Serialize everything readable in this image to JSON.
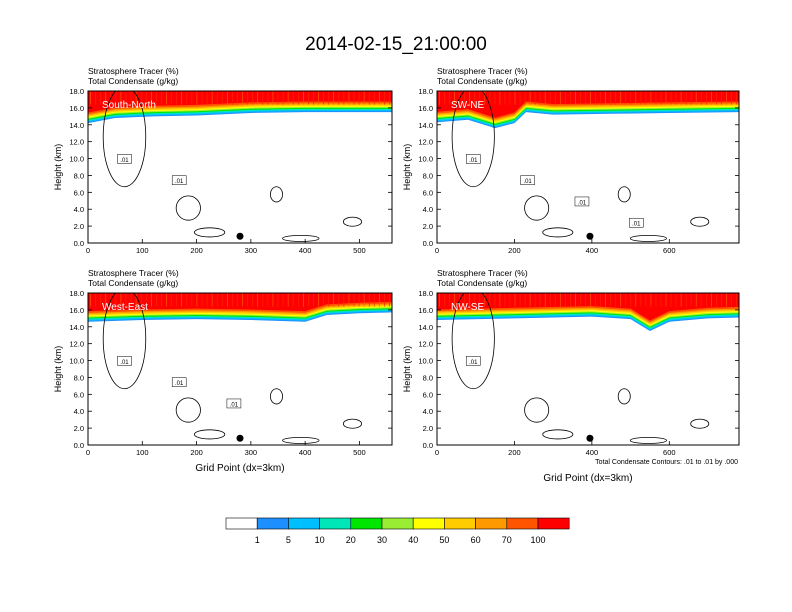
{
  "figure": {
    "title": "2014-02-15_21:00:00",
    "footnote": "Total Condensate Contours: .01 to .01 by .000",
    "bottom_xlabel": "Grid Point (dx=3km)"
  },
  "chart_data": [
    {
      "type": "heatmap",
      "panel_label": "South-North",
      "title_lines": [
        "Stratosphere Tracer   (%)",
        "Total Condensate   (g/kg)"
      ],
      "ylabel": "Height (km)",
      "xlabel": "",
      "xlim": [
        0,
        560
      ],
      "ylim": [
        0,
        18
      ],
      "xticks": [
        0,
        100,
        200,
        300,
        400,
        500
      ],
      "yticks": [
        0,
        2,
        4,
        6,
        8,
        10,
        12,
        14,
        16,
        18
      ],
      "ytick_labels": [
        "0.0",
        "2.0",
        "4.0",
        "6.0",
        "8.0",
        "10.0",
        "12.0",
        "14.0",
        "16.0",
        "18.0"
      ],
      "contour_labels": [
        ".01",
        ".01"
      ],
      "marker_x": 280,
      "tracer_boundary": [
        [
          0,
          14.2
        ],
        [
          50,
          14.8
        ],
        [
          120,
          15.0
        ],
        [
          200,
          15.1
        ],
        [
          300,
          15.4
        ],
        [
          400,
          15.5
        ],
        [
          500,
          15.5
        ],
        [
          560,
          15.5
        ]
      ]
    },
    {
      "type": "heatmap",
      "panel_label": "SW-NE",
      "title_lines": [
        "Stratosphere Tracer   (%)",
        "Total Condensate   (g/kg)"
      ],
      "ylabel": "Height (km)",
      "xlabel": "",
      "xlim": [
        0,
        780
      ],
      "ylim": [
        0,
        18
      ],
      "xticks": [
        0,
        200,
        400,
        600
      ],
      "yticks": [
        0,
        2,
        4,
        6,
        8,
        10,
        12,
        14,
        16,
        18
      ],
      "ytick_labels": [
        "0.0",
        "2.0",
        "4.0",
        "6.0",
        "8.0",
        "10.0",
        "12.0",
        "14.0",
        "16.0",
        "18.0"
      ],
      "contour_labels": [
        ".01",
        ".01",
        ".01",
        ".01"
      ],
      "marker_x": 395,
      "tracer_boundary": [
        [
          0,
          14.3
        ],
        [
          80,
          14.6
        ],
        [
          150,
          13.6
        ],
        [
          200,
          14.2
        ],
        [
          230,
          15.5
        ],
        [
          300,
          15.2
        ],
        [
          450,
          15.3
        ],
        [
          600,
          15.4
        ],
        [
          780,
          15.5
        ]
      ]
    },
    {
      "type": "heatmap",
      "panel_label": "West-East",
      "title_lines": [
        "Stratosphere Tracer   (%)",
        "Total Condensate   (g/kg)"
      ],
      "ylabel": "Height (km)",
      "xlabel": "Grid Point (dx=3km)",
      "xlim": [
        0,
        560
      ],
      "ylim": [
        0,
        18
      ],
      "xticks": [
        0,
        100,
        200,
        300,
        400,
        500
      ],
      "yticks": [
        0,
        2,
        4,
        6,
        8,
        10,
        12,
        14,
        16,
        18
      ],
      "ytick_labels": [
        "0.0",
        "2.0",
        "4.0",
        "6.0",
        "8.0",
        "10.0",
        "12.0",
        "14.0",
        "16.0",
        "18.0"
      ],
      "contour_labels": [
        ".01",
        ".01",
        ".01"
      ],
      "marker_x": 280,
      "tracer_boundary": [
        [
          0,
          14.6
        ],
        [
          100,
          14.8
        ],
        [
          200,
          14.9
        ],
        [
          300,
          14.8
        ],
        [
          400,
          14.6
        ],
        [
          440,
          15.4
        ],
        [
          500,
          15.6
        ],
        [
          560,
          15.7
        ]
      ]
    },
    {
      "type": "heatmap",
      "panel_label": "NW-SE",
      "title_lines": [
        "Stratosphere Tracer   (%)",
        "Total Condensate   (g/kg)"
      ],
      "ylabel": "Height (km)",
      "xlabel": "Grid Point (dx=3km)",
      "xlim": [
        0,
        780
      ],
      "ylim": [
        0,
        18
      ],
      "xticks": [
        0,
        200,
        400,
        600
      ],
      "yticks": [
        0,
        2,
        4,
        6,
        8,
        10,
        12,
        14,
        16,
        18
      ],
      "ytick_labels": [
        "0.0",
        "2.0",
        "4.0",
        "6.0",
        "8.0",
        "10.0",
        "12.0",
        "14.0",
        "16.0",
        "18.0"
      ],
      "contour_labels": [
        ".01"
      ],
      "marker_x": 395,
      "tracer_boundary": [
        [
          0,
          14.8
        ],
        [
          200,
          15.0
        ],
        [
          400,
          15.2
        ],
        [
          500,
          14.9
        ],
        [
          550,
          13.5
        ],
        [
          600,
          14.6
        ],
        [
          700,
          15.0
        ],
        [
          780,
          15.1
        ]
      ]
    }
  ],
  "colorbar": {
    "labels": [
      "1",
      "5",
      "10",
      "20",
      "30",
      "40",
      "50",
      "60",
      "70",
      "100"
    ],
    "colors": [
      "#ffffff",
      "#1e8fff",
      "#00bfff",
      "#00e6b8",
      "#00e600",
      "#99ee33",
      "#ffff00",
      "#ffcc00",
      "#ff9900",
      "#ff5500",
      "#ff0000"
    ]
  }
}
